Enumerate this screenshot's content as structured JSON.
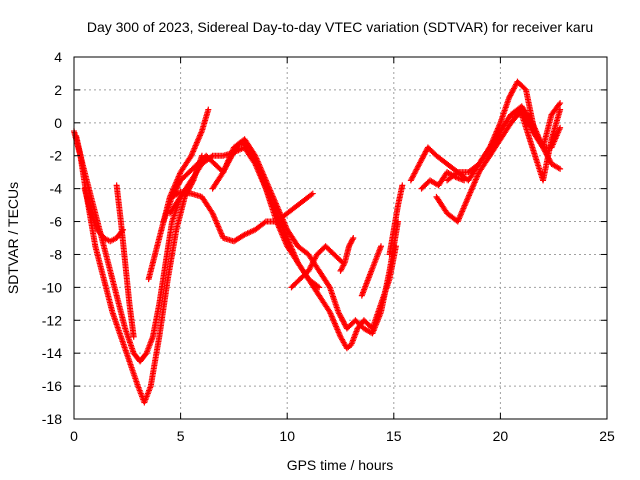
{
  "chart_data": {
    "type": "scatter",
    "title": "Day 300 of 2023, Sidereal Day-to-day VTEC variation (SDTVAR) for receiver karu",
    "xlabel": "GPS time / hours",
    "ylabel": "SDTVAR / TECUs",
    "xlim": [
      0,
      25
    ],
    "ylim": [
      -18,
      4
    ],
    "xticks": [
      0,
      5,
      10,
      15,
      20,
      25
    ],
    "yticks": [
      -18,
      -16,
      -14,
      -12,
      -10,
      -8,
      -6,
      -4,
      -2,
      0,
      2,
      4
    ],
    "grid": true,
    "marker": "+",
    "colors": {
      "series": "#ff0000",
      "grid": "#a0a0a0",
      "axis": "#000000"
    },
    "series": [
      {
        "x": [
          0.0,
          0.3,
          0.6,
          1.0,
          1.4,
          1.8,
          2.2,
          2.6,
          3.0,
          3.3,
          3.6,
          4.0,
          4.4,
          4.8,
          5.2,
          5.6,
          6.0
        ],
        "y": [
          -0.5,
          -2.0,
          -4.5,
          -7.5,
          -9.5,
          -11.5,
          -13.0,
          -14.5,
          -16.0,
          -17.0,
          -16.0,
          -13.0,
          -9.5,
          -6.5,
          -4.5,
          -3.5,
          -2.0
        ]
      },
      {
        "x": [
          0.1,
          0.4,
          0.8,
          1.2,
          1.6,
          2.0,
          2.4,
          2.8,
          3.1,
          3.4,
          3.7,
          4.0,
          4.3,
          4.6,
          5.0
        ],
        "y": [
          -0.8,
          -2.5,
          -4.5,
          -6.5,
          -8.5,
          -10.5,
          -12.5,
          -14.0,
          -14.5,
          -14.0,
          -13.0,
          -11.0,
          -8.5,
          -6.0,
          -4.5
        ]
      },
      {
        "x": [
          0.5,
          0.8,
          1.1,
          1.4,
          1.7,
          2.0,
          2.3
        ],
        "y": [
          -4.0,
          -5.5,
          -6.5,
          -7.0,
          -7.2,
          -7.0,
          -6.5
        ]
      },
      {
        "x": [
          2.0,
          2.2,
          2.4,
          2.6,
          2.8
        ],
        "y": [
          -3.8,
          -6.0,
          -8.5,
          -11.0,
          -13.0
        ]
      },
      {
        "x": [
          4.6,
          5.0,
          5.5,
          6.0,
          6.5,
          7.0,
          7.5,
          8.0,
          8.5,
          9.0,
          9.5,
          10.0,
          10.5,
          11.0,
          11.2
        ],
        "y": [
          -4.5,
          -4.2,
          -4.3,
          -4.5,
          -5.5,
          -7.0,
          -7.2,
          -6.8,
          -6.5,
          -6.0,
          -6.0,
          -5.5,
          -5.0,
          -4.5,
          -4.3
        ]
      },
      {
        "x": [
          3.5,
          4.0,
          4.5,
          5.0,
          5.5,
          6.0,
          6.3
        ],
        "y": [
          -9.5,
          -7.0,
          -4.5,
          -3.0,
          -2.0,
          -0.5,
          0.8
        ]
      },
      {
        "x": [
          4.2,
          4.6,
          5.0,
          5.4,
          5.8,
          6.2,
          6.6,
          7.0,
          7.4,
          7.8,
          8.2,
          8.6,
          9.0,
          9.5,
          10.0,
          10.5,
          11.0,
          11.5,
          12.0,
          12.5,
          12.8,
          13.0,
          13.3,
          13.6,
          14.0,
          14.4,
          14.8,
          15.1
        ],
        "y": [
          -6.0,
          -4.5,
          -3.5,
          -3.0,
          -2.5,
          -2.0,
          -2.5,
          -3.0,
          -2.0,
          -1.2,
          -1.5,
          -2.5,
          -4.0,
          -5.5,
          -7.0,
          -8.5,
          -9.5,
          -10.5,
          -11.5,
          -13.0,
          -13.7,
          -13.5,
          -12.5,
          -12.0,
          -12.5,
          -11.0,
          -9.5,
          -7.5
        ]
      },
      {
        "x": [
          6.5,
          7.0,
          7.5,
          8.0,
          8.5,
          9.0,
          9.5,
          10.0,
          10.5,
          11.0,
          11.5,
          12.0,
          12.4,
          12.8,
          13.2,
          13.6,
          14.0,
          14.4,
          14.8,
          15.2
        ],
        "y": [
          -4.0,
          -3.0,
          -1.5,
          -1.0,
          -2.0,
          -3.5,
          -5.0,
          -6.5,
          -7.5,
          -8.0,
          -9.0,
          -10.0,
          -11.5,
          -12.5,
          -12.0,
          -12.5,
          -12.8,
          -11.5,
          -9.0,
          -6.0
        ]
      },
      {
        "x": [
          4.5,
          5.0,
          5.5,
          6.0,
          6.5,
          7.0,
          7.5,
          8.0,
          8.5,
          9.0,
          9.5,
          10.0,
          10.5,
          11.0,
          11.5
        ],
        "y": [
          -5.5,
          -4.5,
          -3.5,
          -2.5,
          -2.0,
          -2.0,
          -1.8,
          -1.5,
          -2.5,
          -4.0,
          -6.0,
          -7.5,
          -8.5,
          -9.5,
          -10.0
        ]
      },
      {
        "x": [
          10.2,
          10.6,
          11.0,
          11.4,
          11.8,
          12.2,
          12.6
        ],
        "y": [
          -10.0,
          -9.5,
          -9.0,
          -8.0,
          -7.5,
          -8.0,
          -8.5
        ]
      },
      {
        "x": [
          12.5,
          12.7,
          12.9,
          13.1
        ],
        "y": [
          -9.0,
          -8.5,
          -7.5,
          -7.0
        ]
      },
      {
        "x": [
          13.5,
          13.8,
          14.1,
          14.4
        ],
        "y": [
          -10.5,
          -9.5,
          -8.5,
          -7.5
        ]
      },
      {
        "x": [
          14.8,
          15.0,
          15.2,
          15.4
        ],
        "y": [
          -8.0,
          -6.5,
          -5.0,
          -3.8
        ]
      },
      {
        "x": [
          15.8,
          16.2,
          16.6,
          17.0,
          17.5,
          18.0,
          18.5,
          19.0,
          19.5,
          20.0,
          20.4,
          20.8,
          21.2,
          21.6,
          22.0,
          22.4,
          22.8
        ],
        "y": [
          -3.5,
          -2.5,
          -1.5,
          -2.0,
          -2.5,
          -3.0,
          -3.5,
          -2.5,
          -1.5,
          0.0,
          1.5,
          2.5,
          2.0,
          -0.5,
          -1.5,
          -2.5,
          -2.8
        ]
      },
      {
        "x": [
          17.0,
          17.5,
          18.0,
          18.5,
          19.0,
          19.5,
          20.0,
          20.5,
          21.0,
          21.5,
          22.0,
          22.4,
          22.8
        ],
        "y": [
          -4.5,
          -5.5,
          -6.0,
          -4.5,
          -3.0,
          -2.0,
          -0.5,
          0.5,
          0.5,
          -1.5,
          -3.5,
          -1.0,
          0.8
        ]
      },
      {
        "x": [
          17.5,
          18.0,
          18.5,
          19.0,
          19.5,
          20.0,
          20.5,
          21.0,
          21.5,
          22.0,
          22.4,
          22.8
        ],
        "y": [
          -3.5,
          -3.0,
          -3.0,
          -2.5,
          -1.5,
          -0.5,
          0.5,
          1.0,
          0.0,
          -1.5,
          0.5,
          1.2
        ]
      },
      {
        "x": [
          16.3,
          16.7,
          17.1,
          17.5,
          17.9,
          18.3
        ],
        "y": [
          -4.0,
          -3.5,
          -3.8,
          -3.0,
          -3.3,
          -3.5
        ]
      },
      {
        "x": [
          19.5,
          20.0,
          20.5,
          21.0,
          21.5,
          22.0,
          22.4,
          22.8
        ],
        "y": [
          -2.0,
          -1.0,
          0.0,
          0.8,
          -0.5,
          -1.5,
          -1.5,
          -0.3
        ]
      }
    ]
  }
}
